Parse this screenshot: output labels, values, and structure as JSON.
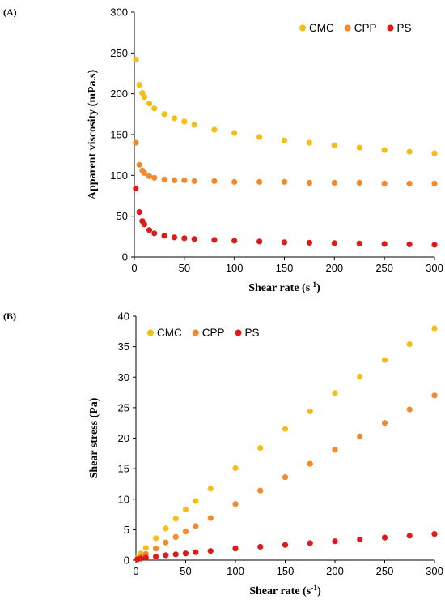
{
  "chart_data": [
    {
      "type": "scatter",
      "panel_label": "(A)",
      "xlabel": "Shear rate (s",
      "xlabel_sup": "-1",
      "xlabel_end": ")",
      "ylabel": "Apparent viscosity (mPa.s)",
      "xlim": [
        0,
        300
      ],
      "ylim": [
        0,
        300
      ],
      "xticks": [
        0,
        50,
        100,
        150,
        200,
        250,
        300
      ],
      "yticks": [
        0,
        50,
        100,
        150,
        200,
        250,
        300
      ],
      "grid": false,
      "legend_position": "top-right",
      "x": [
        1.5,
        5,
        8,
        10,
        15,
        20,
        30,
        40,
        50,
        60,
        80,
        100,
        125,
        150,
        175,
        200,
        225,
        250,
        275,
        300
      ],
      "series": [
        {
          "name": "CMC",
          "color": "#F5BE16",
          "values": [
            242,
            211,
            201,
            196,
            188,
            182,
            175,
            170,
            166,
            162,
            156,
            152,
            147,
            143,
            140,
            137,
            134,
            131,
            129,
            127
          ]
        },
        {
          "name": "CPP",
          "color": "#F08A2C",
          "values": [
            140,
            113,
            106,
            103,
            99,
            97,
            95,
            94,
            94,
            93,
            93,
            92,
            92,
            92,
            91,
            91,
            91,
            90,
            90,
            90
          ]
        },
        {
          "name": "PS",
          "color": "#DD1B1B",
          "values": [
            84,
            55,
            44,
            40,
            33,
            29,
            26,
            24,
            23,
            22,
            21,
            20,
            19,
            18,
            17.5,
            17,
            16.5,
            16,
            15.5,
            15
          ]
        }
      ]
    },
    {
      "type": "scatter",
      "panel_label": "(B)",
      "xlabel": "Shear rate (s",
      "xlabel_sup": "-1",
      "xlabel_end": ")",
      "ylabel": "Shear stress (Pa)",
      "xlim": [
        0,
        300
      ],
      "ylim": [
        0,
        40
      ],
      "xticks": [
        0,
        50,
        100,
        150,
        200,
        250,
        300
      ],
      "yticks": [
        0,
        5,
        10,
        15,
        20,
        25,
        30,
        35,
        40
      ],
      "grid": false,
      "legend_position": "top-left",
      "x": [
        1.5,
        5,
        10,
        20,
        30,
        40,
        50,
        60,
        75,
        100,
        125,
        150,
        175,
        200,
        225,
        250,
        275,
        300
      ],
      "series": [
        {
          "name": "CMC",
          "color": "#F5BE16",
          "values": [
            0.36,
            1.1,
            2.0,
            3.6,
            5.2,
            6.8,
            8.3,
            9.7,
            11.7,
            15.1,
            18.4,
            21.5,
            24.4,
            27.4,
            30.1,
            32.8,
            35.4,
            38.0
          ]
        },
        {
          "name": "CPP",
          "color": "#F08A2C",
          "values": [
            0.21,
            0.56,
            1.0,
            1.9,
            2.9,
            3.8,
            4.7,
            5.6,
            6.9,
            9.2,
            11.4,
            13.6,
            15.8,
            18.1,
            20.3,
            22.5,
            24.7,
            27.0
          ]
        },
        {
          "name": "PS",
          "color": "#DD1B1B",
          "values": [
            0.13,
            0.28,
            0.4,
            0.6,
            0.8,
            0.95,
            1.1,
            1.3,
            1.5,
            1.9,
            2.2,
            2.5,
            2.8,
            3.1,
            3.4,
            3.7,
            4.0,
            4.3
          ]
        }
      ]
    }
  ]
}
